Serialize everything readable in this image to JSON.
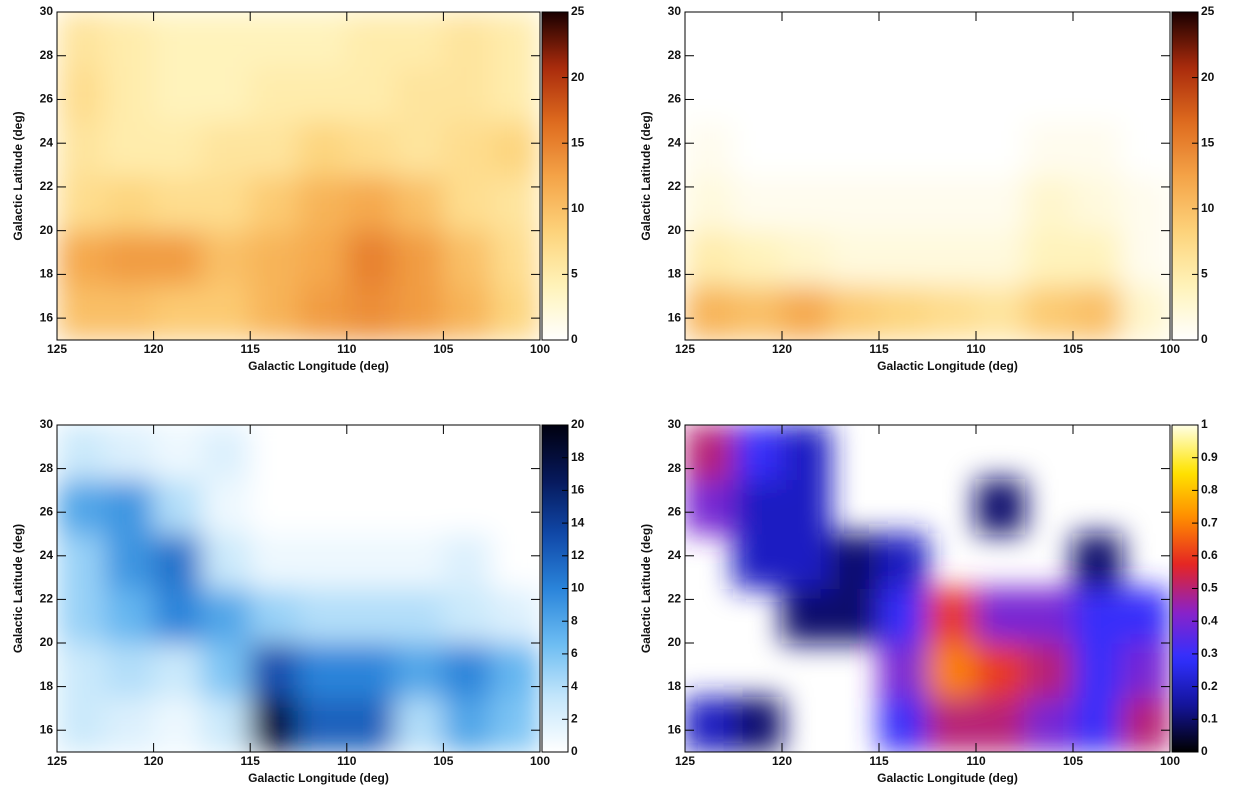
{
  "chart_data": [
    {
      "type": "heatmap",
      "xlabel": "Galactic Longitude (deg)",
      "ylabel": "Galactic Latitude (deg)",
      "xbins": [
        125,
        122.5,
        120,
        117.5,
        115,
        112.5,
        110,
        107.5,
        105,
        102.5,
        100
      ],
      "ybins": [
        15,
        17.5,
        20,
        22.5,
        25,
        27.5,
        30
      ],
      "z": [
        [
          10,
          10,
          9,
          9,
          11,
          13,
          14,
          13,
          11,
          8
        ],
        [
          12,
          13,
          13,
          10,
          11,
          12,
          15,
          13,
          10,
          7
        ],
        [
          7,
          8,
          7,
          7,
          9,
          11,
          12,
          10,
          7,
          6
        ],
        [
          6,
          5,
          5,
          6,
          6,
          8,
          7,
          6,
          7,
          8
        ],
        [
          7,
          5,
          4,
          4,
          5,
          5,
          5,
          6,
          6,
          5
        ],
        [
          6,
          5,
          4,
          4,
          4,
          4,
          5,
          5,
          6,
          5
        ]
      ],
      "xlim": [
        125,
        100
      ],
      "ylim": [
        15,
        30
      ],
      "xticks": [
        125,
        120,
        115,
        110,
        105,
        100
      ],
      "yticks": [
        16,
        18,
        20,
        22,
        24,
        26,
        28,
        30
      ],
      "zlim": [
        0,
        25
      ],
      "zticks": [
        0,
        5,
        10,
        15,
        20,
        25
      ],
      "colormap": [
        "#ffffff",
        "#fff3b8",
        "#fdd27a",
        "#f4a347",
        "#de6a1e",
        "#a82a0c",
        "#1a0000"
      ]
    },
    {
      "type": "heatmap",
      "xlabel": "Galactic Longitude (deg)",
      "ylabel": "Galactic Latitude (deg)",
      "xbins": [
        125,
        122.5,
        120,
        117.5,
        115,
        112.5,
        110,
        107.5,
        105,
        102.5,
        100
      ],
      "ybins": [
        15,
        17.5,
        20,
        22.5,
        25,
        27.5,
        30
      ],
      "z": [
        [
          11,
          10,
          12,
          9,
          8,
          7,
          6,
          9,
          10,
          3
        ],
        [
          5,
          4,
          3,
          2,
          2,
          2,
          2,
          4,
          4,
          1
        ],
        [
          2,
          1,
          1,
          1,
          1,
          1,
          1,
          3,
          2,
          1
        ],
        [
          1,
          0,
          0,
          0,
          0,
          0,
          0,
          1,
          1,
          0
        ],
        [
          0,
          0,
          0,
          0,
          0,
          0,
          0,
          0,
          0,
          0
        ],
        [
          0,
          0,
          0,
          0,
          0,
          0,
          0,
          0,
          0,
          0
        ]
      ],
      "xlim": [
        125,
        100
      ],
      "ylim": [
        15,
        30
      ],
      "xticks": [
        125,
        120,
        115,
        110,
        105,
        100
      ],
      "yticks": [
        16,
        18,
        20,
        22,
        24,
        26,
        28,
        30
      ],
      "zlim": [
        0,
        25
      ],
      "zticks": [
        0,
        5,
        10,
        15,
        20,
        25
      ],
      "colormap": [
        "#ffffff",
        "#fff3b8",
        "#fdd27a",
        "#f4a347",
        "#de6a1e",
        "#a82a0c",
        "#1a0000"
      ]
    },
    {
      "type": "heatmap",
      "xlabel": "Galactic Longitude (deg)",
      "ylabel": "Galactic Latitude (deg)",
      "xbins": [
        125,
        122.5,
        120,
        117.5,
        115,
        112.5,
        110,
        107.5,
        105,
        102.5,
        100
      ],
      "ybins": [
        15,
        17.5,
        20,
        22.5,
        25,
        27.5,
        30
      ],
      "z": [
        [
          3,
          2,
          1,
          3,
          18,
          12,
          12,
          4,
          8,
          6
        ],
        [
          3,
          4,
          3,
          6,
          13,
          10,
          10,
          8,
          10,
          7
        ],
        [
          5,
          7,
          10,
          8,
          5,
          4,
          4,
          4,
          3,
          2
        ],
        [
          5,
          9,
          11,
          3,
          1,
          1,
          1,
          1,
          2,
          0
        ],
        [
          8,
          9,
          4,
          1,
          0,
          0,
          0,
          0,
          0,
          0
        ],
        [
          3,
          2,
          1,
          2,
          0,
          0,
          0,
          0,
          0,
          0
        ]
      ],
      "xlim": [
        125,
        100
      ],
      "ylim": [
        15,
        30
      ],
      "xticks": [
        125,
        120,
        115,
        110,
        105,
        100
      ],
      "yticks": [
        16,
        18,
        20,
        22,
        24,
        26,
        28,
        30
      ],
      "zlim": [
        0,
        20
      ],
      "zticks": [
        0,
        2,
        4,
        6,
        8,
        10,
        12,
        14,
        16,
        18,
        20
      ],
      "colormap": [
        "#ffffff",
        "#c4e6fb",
        "#6bbcf2",
        "#2a84da",
        "#1048a8",
        "#06185a",
        "#000010"
      ]
    },
    {
      "type": "heatmap",
      "xlabel": "Galactic Longitude (deg)",
      "ylabel": "Galactic Latitude (deg)",
      "xbins": [
        125,
        122.5,
        120,
        117.5,
        115,
        112.5,
        110,
        107.5,
        105,
        102.5,
        100
      ],
      "ybins": [
        15,
        17.5,
        20,
        22.5,
        25,
        27.5,
        30
      ],
      "z": [
        [
          0.2,
          0.1,
          null,
          null,
          0.3,
          0.5,
          0.5,
          0.4,
          0.3,
          0.5
        ],
        [
          null,
          null,
          null,
          null,
          0.4,
          0.7,
          0.6,
          0.5,
          0.3,
          0.4
        ],
        [
          null,
          null,
          0.1,
          0.1,
          0.3,
          0.6,
          0.4,
          0.4,
          0.3,
          0.3
        ],
        [
          null,
          0.2,
          0.2,
          0.1,
          0.2,
          null,
          null,
          null,
          0.1,
          null
        ],
        [
          0.4,
          0.2,
          0.2,
          null,
          null,
          null,
          0.1,
          null,
          null,
          null
        ],
        [
          0.5,
          0.3,
          0.2,
          null,
          null,
          null,
          null,
          null,
          null,
          null
        ]
      ],
      "xlim": [
        125,
        100
      ],
      "ylim": [
        15,
        30
      ],
      "xticks": [
        125,
        120,
        115,
        110,
        105,
        100
      ],
      "yticks": [
        16,
        18,
        20,
        22,
        24,
        26,
        28,
        30
      ],
      "zlim": [
        0,
        1
      ],
      "zticks": [
        0,
        0.1,
        0.2,
        0.3,
        0.4,
        0.5,
        0.6,
        0.7,
        0.8,
        0.9,
        1
      ],
      "colormap": [
        "#000000",
        "#14149a",
        "#3030ff",
        "#8a22c8",
        "#e42424",
        "#ff8a00",
        "#ffe400",
        "#ffffe6"
      ]
    }
  ]
}
